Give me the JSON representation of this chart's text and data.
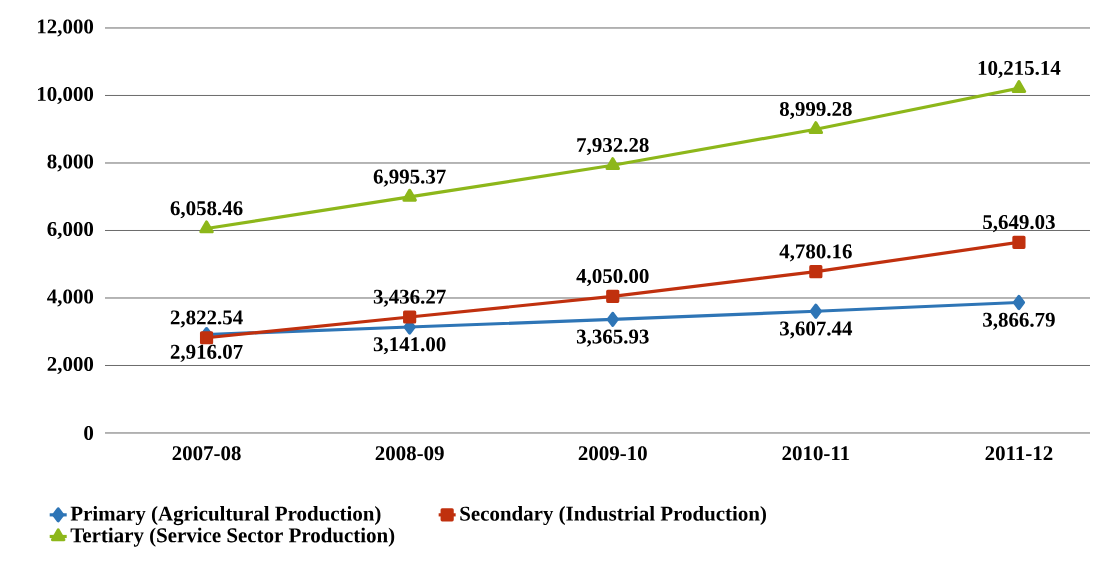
{
  "chart_data": {
    "type": "line",
    "categories": [
      "2007-08",
      "2008-09",
      "2009-10",
      "2010-11",
      "2011-12"
    ],
    "ylim": [
      0,
      12000
    ],
    "yticks": [
      0,
      {
        "value": 2000,
        "label": "2,000"
      },
      {
        "value": 4000,
        "label": "4,000"
      },
      {
        "value": 6000,
        "label": "6,000"
      },
      {
        "value": 8000,
        "label": "8,000"
      },
      {
        "value": 10000,
        "label": "10,000"
      },
      {
        "value": 12000,
        "label": "12,000"
      }
    ],
    "grid": "y",
    "legend": "bottom",
    "series": [
      {
        "name": "Primary (Agricultural Production)",
        "color": "#2e75b6",
        "marker": "diamond",
        "values": [
          2916.07,
          3141.0,
          3365.93,
          3607.44,
          3866.79
        ],
        "value_labels": [
          "2,916.07",
          "3,141.00",
          "3,365.93",
          "3,607.44",
          "3,866.79"
        ]
      },
      {
        "name": "Secondary (Industrial Production)",
        "color": "#c0300e",
        "marker": "square",
        "values": [
          2822.54,
          3436.27,
          4050.0,
          4780.16,
          5649.03
        ],
        "value_labels": [
          "2,822.54",
          "3,436.27",
          "4,050.00",
          "4,780.16",
          "5,649.03"
        ]
      },
      {
        "name": "Tertiary (Service Sector Production)",
        "color": "#8db71a",
        "marker": "triangle",
        "values": [
          6058.46,
          6995.37,
          7932.28,
          8999.28,
          10215.14
        ],
        "value_labels": [
          "6,058.46",
          "6,995.37",
          "7,932.28",
          "8,999.28",
          "10,215.14"
        ]
      }
    ]
  }
}
